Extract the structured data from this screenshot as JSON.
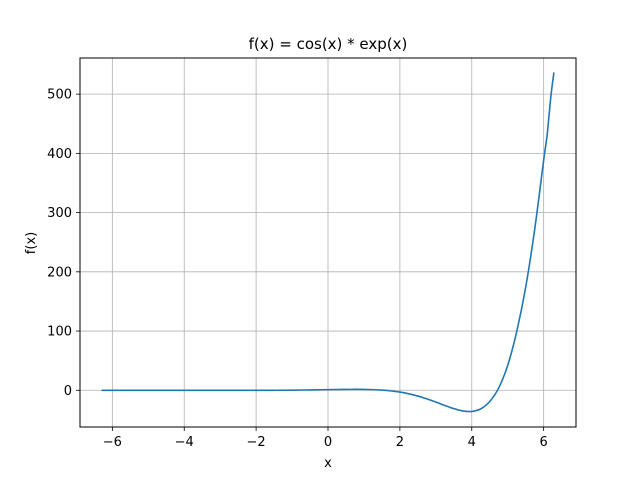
{
  "chart_data": {
    "type": "line",
    "title": "f(x) = cos(x) * exp(x)",
    "xlabel": "x",
    "ylabel": "f(x)",
    "xlim": [
      -6.9,
      6.9
    ],
    "ylim": [
      -62,
      561
    ],
    "x_ticks": [
      -6,
      -4,
      -2,
      0,
      2,
      4,
      6
    ],
    "x_tick_labels": [
      "−6",
      "−4",
      "−2",
      "0",
      "2",
      "4",
      "6"
    ],
    "y_ticks": [
      0,
      100,
      200,
      300,
      400,
      500
    ],
    "y_tick_labels": [
      "0",
      "100",
      "200",
      "300",
      "400",
      "500"
    ],
    "grid": true,
    "series": [
      {
        "color": "#1f77b4",
        "x": [
          -6.283,
          -6.0,
          -5.5,
          -5.0,
          -4.5,
          -4.0,
          -3.5,
          -3.0,
          -2.5,
          -2.0,
          -1.5,
          -1.0,
          -0.5,
          0.0,
          0.25,
          0.5,
          0.75,
          1.0,
          1.25,
          1.5,
          1.75,
          2.0,
          2.25,
          2.5,
          2.75,
          3.0,
          3.25,
          3.5,
          3.75,
          4.0,
          4.25,
          4.5,
          4.75,
          5.0,
          5.25,
          5.5,
          5.75,
          6.0,
          6.1,
          6.2,
          6.283
        ],
        "y": [
          0.0019,
          0.0024,
          0.0029,
          0.0019,
          -0.0024,
          -0.012,
          -0.028,
          -0.049,
          -0.066,
          -0.056,
          0.016,
          0.199,
          0.579,
          1.0,
          1.244,
          1.447,
          1.549,
          1.469,
          1.099,
          0.317,
          -1.017,
          -3.075,
          -5.939,
          -9.764,
          -14.57,
          -19.88,
          -25.61,
          -30.97,
          -34.84,
          -35.69,
          -31.4,
          -18.97,
          3.95,
          42.1,
          98.99,
          174.0,
          271.3,
          388.2,
          433.0,
          495.6,
          535.5
        ]
      }
    ]
  }
}
